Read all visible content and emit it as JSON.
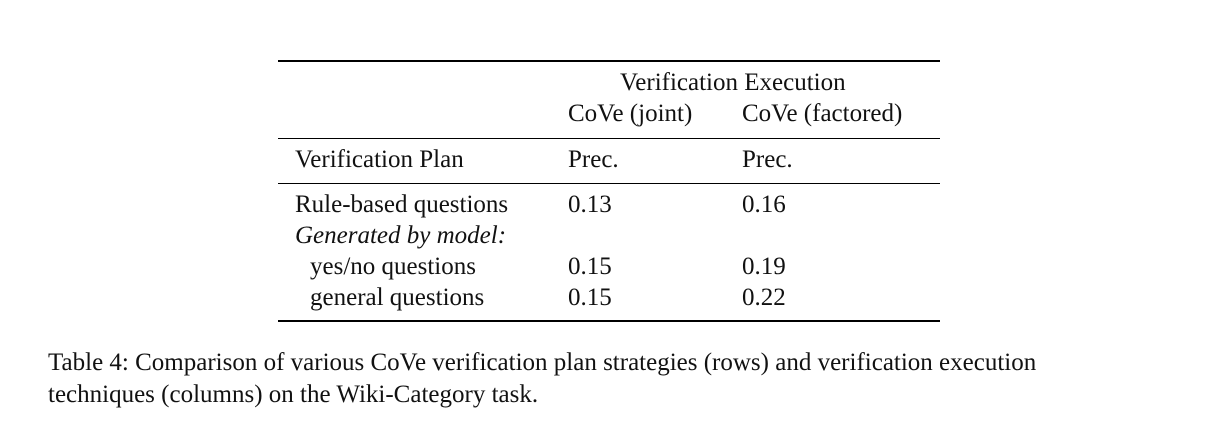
{
  "table": {
    "group_header": "Verification Execution",
    "col_joint": "CoVe (joint)",
    "col_factored": "CoVe (factored)",
    "row_header": "Verification Plan",
    "metric_joint": "Prec.",
    "metric_factored": "Prec.",
    "rows": [
      {
        "label": "Rule-based questions",
        "joint": "0.13",
        "factored": "0.16"
      },
      {
        "label": "Generated by model:",
        "joint": "",
        "factored": ""
      },
      {
        "label": "yes/no questions",
        "joint": "0.15",
        "factored": "0.19"
      },
      {
        "label": "general questions",
        "joint": "0.15",
        "factored": "0.22"
      }
    ]
  },
  "caption": {
    "line1": "Table 4: Comparison of various CoVe verification plan strategies (rows) and verification execution",
    "line2": "techniques (columns) on the Wiki-Category task."
  }
}
